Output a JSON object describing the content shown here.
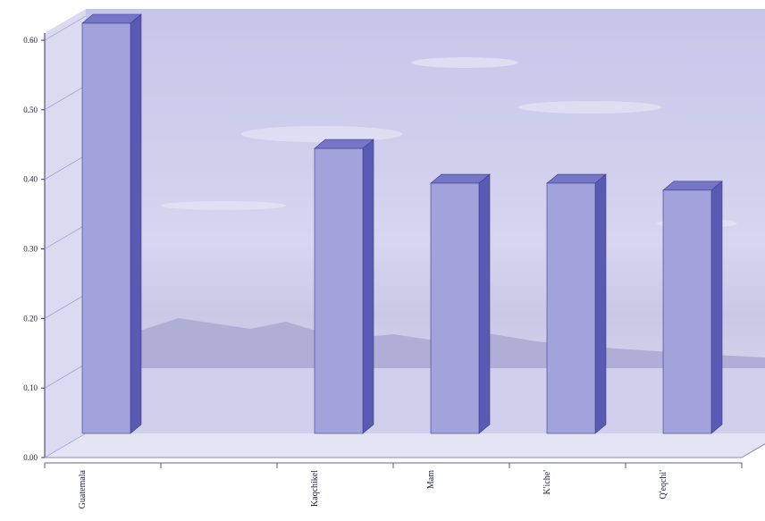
{
  "chart_data": {
    "type": "bar",
    "title": "",
    "xlabel": "",
    "ylabel": "",
    "ylim": [
      0,
      0.6
    ],
    "yticks": [
      "0.00",
      "0.10",
      "0.20",
      "0.30",
      "0.40",
      "0.50",
      "0.60"
    ],
    "categories": [
      "Guatemala",
      "",
      "Kaqchikel",
      "Mam",
      "K'iche'",
      "Q'eqchi'"
    ],
    "values": [
      0.6,
      null,
      0.42,
      0.37,
      0.37,
      0.36
    ],
    "grid": false,
    "legend": "none",
    "style": "3d",
    "background": "sky-and-mountain photo"
  },
  "colors": {
    "bar_front": "#a3a3dc",
    "bar_side": "#5a5ab4",
    "bar_top": "#7676c8",
    "wall": "#d3d3ee",
    "floor": "#e4e4f5",
    "axis": "#333366"
  }
}
